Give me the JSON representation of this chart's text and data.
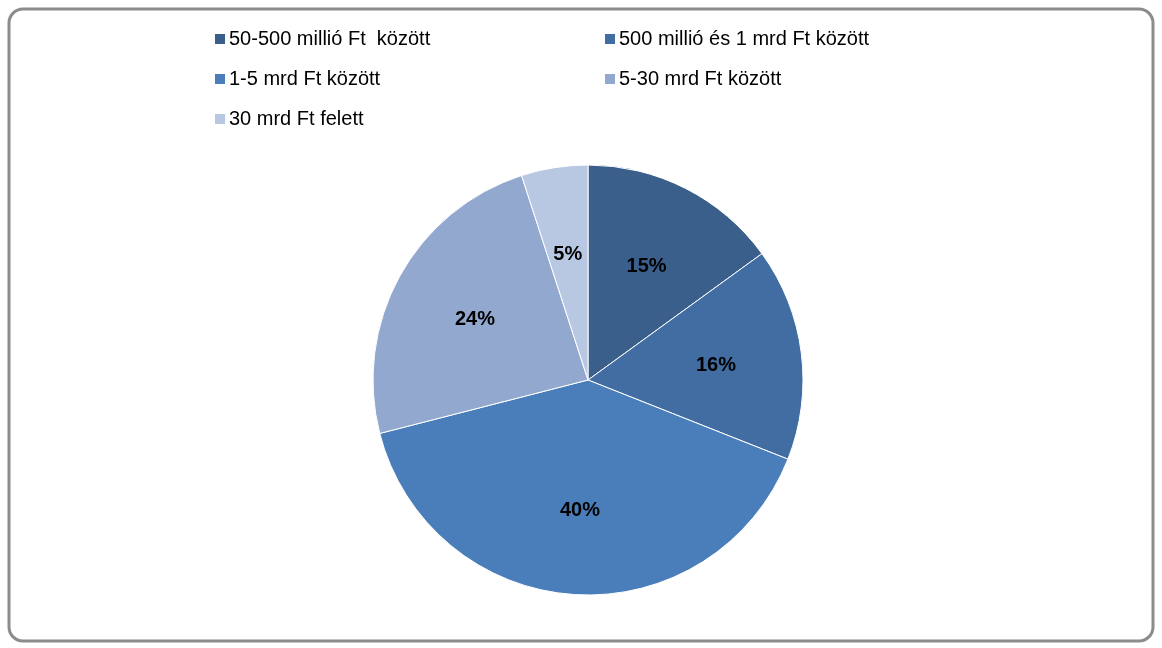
{
  "chart_data": {
    "type": "pie",
    "categories": [
      "50-500 millió Ft  között",
      "500 millió és 1 mrd Ft között",
      "1-5 mrd Ft között",
      "5-30 mrd Ft között",
      "30 mrd Ft felett"
    ],
    "values": [
      15,
      16,
      40,
      24,
      5
    ],
    "colors": [
      "#3a5f8b",
      "#416da2",
      "#4a7ebb",
      "#92a8cf",
      "#b9c8e2"
    ],
    "value_labels": [
      "15%",
      "16%",
      "40%",
      "24%",
      "5%"
    ],
    "legend": "top"
  }
}
